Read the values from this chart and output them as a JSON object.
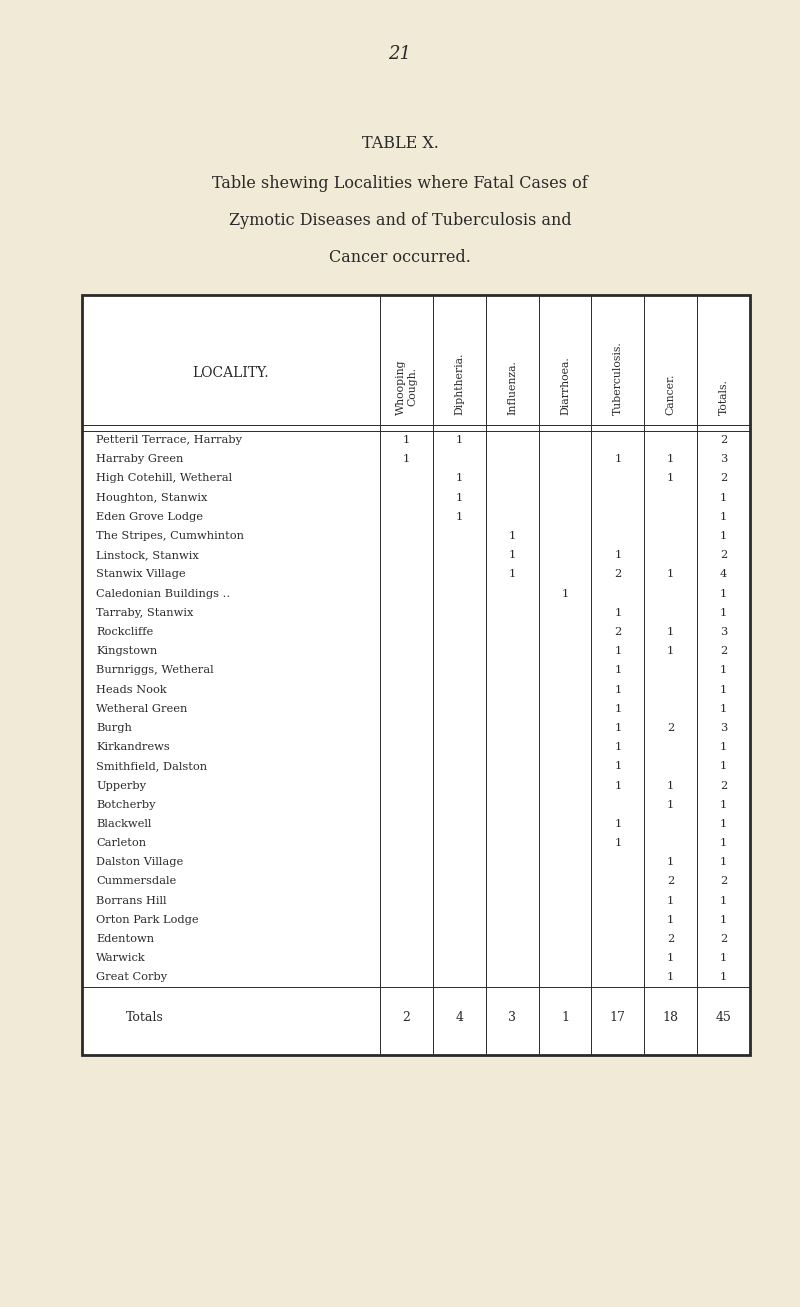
{
  "page_number": "21",
  "table_title": "TABLE X.",
  "subtitle_line1": "Table shewing Localities where Fatal Cases of",
  "subtitle_line2": "Zymotic Diseases and of Tuberculosis and",
  "subtitle_line3": "Cancer occurred.",
  "bg_color": "#F0EAD6",
  "text_color": "#2a2a2a",
  "columns": [
    "Whooping\nCough.",
    "Diphtheria.",
    "Influenza.",
    "Diarrhoea.",
    "Tuberculosis.",
    "Cancer.",
    "Totals."
  ],
  "locality_header": "LOCALITY.",
  "rows": [
    {
      "locality": "Petteril Terrace, Harraby",
      "vals": [
        1,
        1,
        "",
        "",
        "",
        "",
        2
      ]
    },
    {
      "locality": "Harraby Green",
      "vals": [
        1,
        "",
        "",
        "",
        1,
        1,
        3
      ]
    },
    {
      "locality": "High Cotehill, Wetheral",
      "vals": [
        "",
        1,
        "",
        "",
        "",
        1,
        2
      ]
    },
    {
      "locality": "Houghton, Stanwix",
      "vals": [
        "",
        1,
        "",
        "",
        "",
        "",
        1
      ]
    },
    {
      "locality": "Eden Grove Lodge",
      "vals": [
        "",
        1,
        "",
        "",
        "",
        "",
        1
      ]
    },
    {
      "locality": "The Stripes, Cumwhinton",
      "vals": [
        "",
        "",
        1,
        "",
        "",
        "",
        1
      ]
    },
    {
      "locality": "Linstock, Stanwix",
      "vals": [
        "",
        "",
        1,
        "",
        1,
        "",
        2
      ]
    },
    {
      "locality": "Stanwix Village",
      "vals": [
        "",
        "",
        1,
        "",
        2,
        1,
        4
      ]
    },
    {
      "locality": "Caledonian Buildings ..",
      "vals": [
        "",
        "",
        "",
        1,
        "",
        "",
        1
      ]
    },
    {
      "locality": "Tarraby, Stanwix",
      "vals": [
        "",
        "",
        "",
        "",
        1,
        "",
        1
      ]
    },
    {
      "locality": "Rockcliffe",
      "vals": [
        "",
        "",
        "",
        "",
        2,
        1,
        3
      ]
    },
    {
      "locality": "Kingstown",
      "vals": [
        "",
        "",
        "",
        "",
        1,
        1,
        2
      ]
    },
    {
      "locality": "Burnriggs, Wetheral",
      "vals": [
        "",
        "",
        "",
        "",
        1,
        "",
        1
      ]
    },
    {
      "locality": "Heads Nook",
      "vals": [
        "",
        "",
        "",
        "",
        1,
        "",
        1
      ]
    },
    {
      "locality": "Wetheral Green",
      "vals": [
        "",
        "",
        "",
        "",
        1,
        "",
        1
      ]
    },
    {
      "locality": "Burgh",
      "vals": [
        "",
        "",
        "",
        "",
        1,
        2,
        3
      ]
    },
    {
      "locality": "Kirkandrews",
      "vals": [
        "",
        "",
        "",
        "",
        1,
        "",
        1
      ]
    },
    {
      "locality": "Smithfield, Dalston",
      "vals": [
        "",
        "",
        "",
        "",
        1,
        "",
        1
      ]
    },
    {
      "locality": "Upperby",
      "vals": [
        "",
        "",
        "",
        "",
        1,
        1,
        2
      ]
    },
    {
      "locality": "Botcherby",
      "vals": [
        "",
        "",
        "",
        "",
        "",
        1,
        1
      ]
    },
    {
      "locality": "Blackwell",
      "vals": [
        "",
        "",
        "",
        "",
        1,
        "",
        1
      ]
    },
    {
      "locality": "Carleton",
      "vals": [
        "",
        "",
        "",
        "",
        1,
        "",
        1
      ]
    },
    {
      "locality": "Dalston Village",
      "vals": [
        "",
        "",
        "",
        "",
        "",
        1,
        1
      ]
    },
    {
      "locality": "Cummersdale",
      "vals": [
        "",
        "",
        "",
        "",
        "",
        2,
        2
      ]
    },
    {
      "locality": "Borrans Hill",
      "vals": [
        "",
        "",
        "",
        "",
        "",
        1,
        1
      ]
    },
    {
      "locality": "Orton Park Lodge",
      "vals": [
        "",
        "",
        "",
        "",
        "",
        1,
        1
      ]
    },
    {
      "locality": "Edentown",
      "vals": [
        "",
        "",
        "",
        "",
        "",
        2,
        2
      ]
    },
    {
      "locality": "Warwick",
      "vals": [
        "",
        "",
        "",
        "",
        "",
        1,
        1
      ]
    },
    {
      "locality": "Great Corby",
      "vals": [
        "",
        "",
        "",
        "",
        "",
        1,
        1
      ]
    }
  ],
  "totals": [
    2,
    4,
    3,
    1,
    17,
    18,
    45
  ]
}
